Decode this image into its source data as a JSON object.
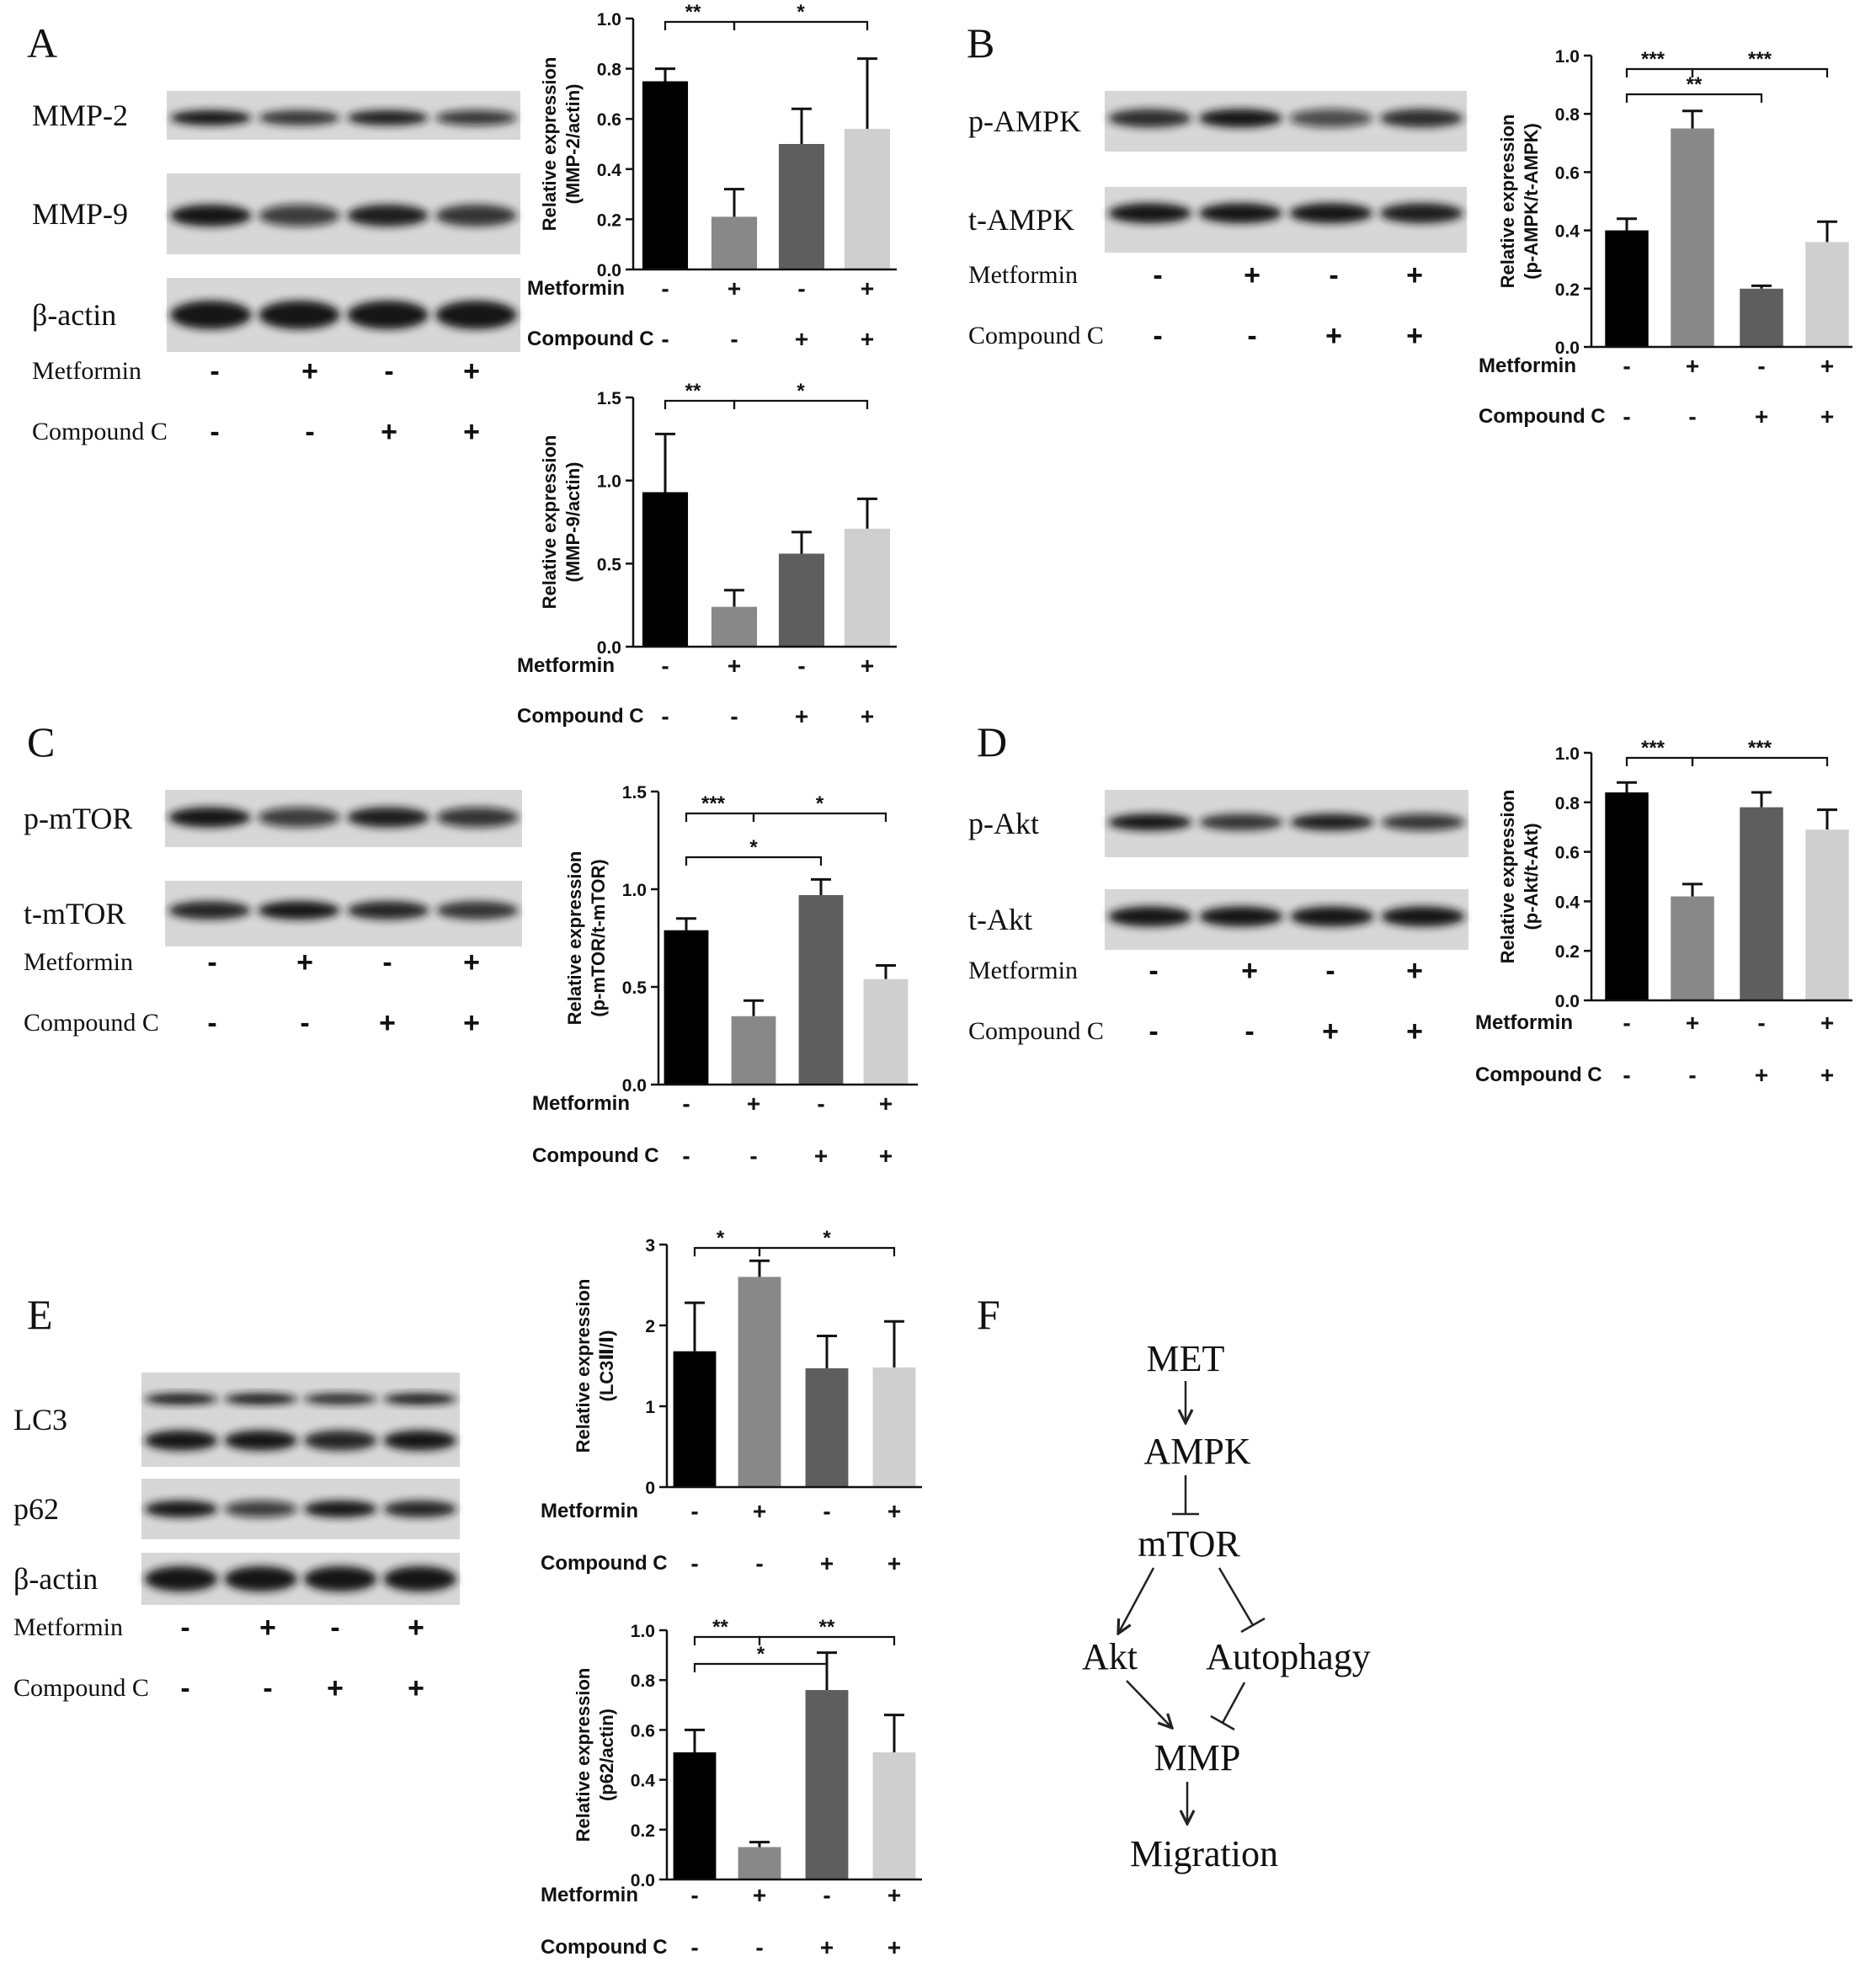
{
  "panel_letters": [
    "A",
    "B",
    "C",
    "D",
    "E",
    "F"
  ],
  "blots": {
    "A": {
      "rows": [
        "MMP-2",
        "MMP-9",
        "β-actin"
      ]
    },
    "B": {
      "rows": [
        "p-AMPK",
        "t-AMPK"
      ]
    },
    "C": {
      "rows": [
        "p-mTOR",
        "t-mTOR"
      ]
    },
    "D": {
      "rows": [
        "p-Akt",
        "t-Akt"
      ]
    },
    "E": {
      "rows": [
        "LC3",
        "p62",
        "β-actin"
      ]
    }
  },
  "treatments": {
    "metformin_label": "Metformin",
    "compound_label": "Compound C",
    "metformin": [
      "-",
      "+",
      "-",
      "+"
    ],
    "compound": [
      "-",
      "-",
      "+",
      "+"
    ]
  },
  "chart_data": [
    {
      "id": "A1",
      "type": "bar",
      "ylabel": "Relative expression",
      "ylabel2": "(MMP-2/actin)",
      "ylim": [
        0,
        1.0
      ],
      "ticks": [
        "0.0",
        "0.2",
        "0.4",
        "0.6",
        "0.8",
        "1.0"
      ],
      "values": [
        0.75,
        0.21,
        0.5,
        0.56
      ],
      "errors": [
        0.05,
        0.11,
        0.14,
        0.28
      ],
      "sig_labels": [
        "**",
        "*"
      ]
    },
    {
      "id": "A2",
      "type": "bar",
      "ylabel": "Relative expression",
      "ylabel2": "(MMP-9/actin)",
      "ylim": [
        0,
        1.5
      ],
      "ticks": [
        "0.0",
        "0.5",
        "1.0",
        "1.5"
      ],
      "values": [
        0.93,
        0.24,
        0.56,
        0.71
      ],
      "errors": [
        0.35,
        0.1,
        0.13,
        0.18
      ],
      "sig_labels": [
        "**",
        "*"
      ]
    },
    {
      "id": "B",
      "type": "bar",
      "ylabel": "Relative expression",
      "ylabel2": "(p-AMPK/t-AMPK)",
      "ylim": [
        0,
        1.0
      ],
      "ticks": [
        "0.0",
        "0.2",
        "0.4",
        "0.6",
        "0.8",
        "1.0"
      ],
      "values": [
        0.4,
        0.75,
        0.2,
        0.36
      ],
      "errors": [
        0.04,
        0.06,
        0.01,
        0.07
      ],
      "sig_labels": [
        "***",
        "***",
        "**"
      ]
    },
    {
      "id": "C",
      "type": "bar",
      "ylabel": "Relative expression",
      "ylabel2": "(p-mTOR/t-mTOR)",
      "ylim": [
        0,
        1.5
      ],
      "ticks": [
        "0.0",
        "0.5",
        "1.0",
        "1.5"
      ],
      "values": [
        0.79,
        0.35,
        0.97,
        0.54
      ],
      "errors": [
        0.06,
        0.08,
        0.08,
        0.07
      ],
      "sig_labels": [
        "***",
        "*",
        "*"
      ]
    },
    {
      "id": "D",
      "type": "bar",
      "ylabel": "Relative expression",
      "ylabel2": "(p-Akt/t-Akt)",
      "ylim": [
        0,
        1.0
      ],
      "ticks": [
        "0.0",
        "0.2",
        "0.4",
        "0.6",
        "0.8",
        "1.0"
      ],
      "values": [
        0.84,
        0.42,
        0.78,
        0.69
      ],
      "errors": [
        0.04,
        0.05,
        0.06,
        0.08
      ],
      "sig_labels": [
        "***",
        "***"
      ]
    },
    {
      "id": "E1",
      "type": "bar",
      "ylabel": "Relative expression",
      "ylabel2": "(LC3Ⅱ/Ⅰ)",
      "ylim": [
        0,
        3
      ],
      "ticks": [
        "0",
        "1",
        "2",
        "3"
      ],
      "values": [
        1.68,
        2.6,
        1.47,
        1.48
      ],
      "errors": [
        0.6,
        0.2,
        0.4,
        0.57
      ],
      "sig_labels": [
        "*",
        "*"
      ]
    },
    {
      "id": "E2",
      "type": "bar",
      "ylabel": "Relative expression",
      "ylabel2": "(p62/actin)",
      "ylim": [
        0,
        1.0
      ],
      "ticks": [
        "0.0",
        "0.2",
        "0.4",
        "0.6",
        "0.8",
        "1.0"
      ],
      "values": [
        0.51,
        0.13,
        0.76,
        0.51
      ],
      "errors": [
        0.09,
        0.02,
        0.15,
        0.15
      ],
      "sig_labels": [
        "**",
        "**",
        "*"
      ]
    }
  ],
  "pathway": {
    "nodes": [
      "MET",
      "AMPK",
      "mTOR",
      "Akt",
      "Autophagy",
      "MMP",
      "Migration"
    ]
  },
  "colors": {
    "bars": [
      "#000000",
      "#888888",
      "#5e5e5e",
      "#cfcfcf"
    ]
  }
}
